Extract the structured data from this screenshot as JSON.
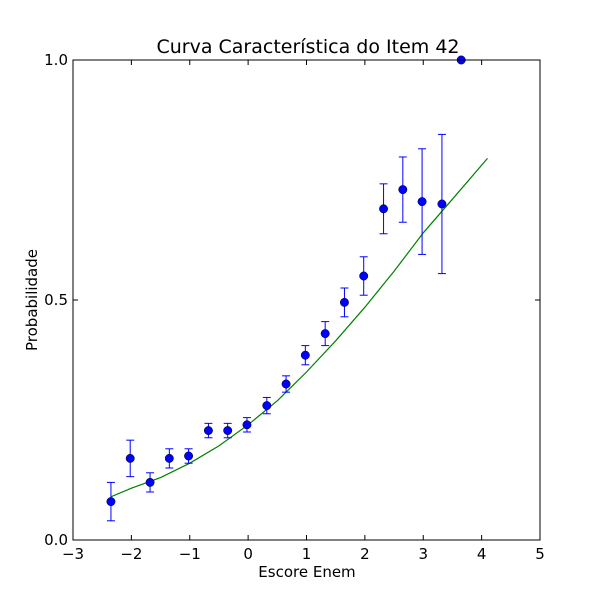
{
  "chart_data": {
    "type": "scatter",
    "title": "Curva Característica do Item 42",
    "xlabel": "Escore Enem",
    "ylabel": "Probabilidade",
    "xlim": [
      -3,
      5
    ],
    "ylim": [
      0,
      1
    ],
    "xticks": [
      -3,
      -2,
      -1,
      0,
      1,
      2,
      3,
      4,
      5
    ],
    "xtick_labels": [
      "−3",
      "−2",
      "−1",
      "0",
      "1",
      "2",
      "3",
      "4",
      "5"
    ],
    "yticks": [
      0,
      0.5,
      1
    ],
    "ytick_labels": [
      "0.0",
      "0.5",
      "1.0"
    ],
    "grid": false,
    "legend": "none",
    "points": {
      "color": "#0000ff",
      "x": [
        -2.35,
        -2.02,
        -1.68,
        -1.35,
        -1.02,
        -0.68,
        -0.35,
        -0.02,
        0.32,
        0.65,
        0.98,
        1.32,
        1.65,
        1.98,
        2.32,
        2.65,
        2.98,
        3.32,
        3.65
      ],
      "y": [
        0.08,
        0.17,
        0.12,
        0.17,
        0.175,
        0.228,
        0.228,
        0.24,
        0.28,
        0.325,
        0.385,
        0.43,
        0.495,
        0.55,
        0.69,
        0.73,
        0.705,
        0.7,
        1.0
      ],
      "yerr": [
        0.04,
        0.038,
        0.02,
        0.02,
        0.015,
        0.015,
        0.015,
        0.015,
        0.017,
        0.017,
        0.02,
        0.025,
        0.03,
        0.04,
        0.052,
        0.068,
        0.11,
        0.145,
        0
      ]
    },
    "curve": {
      "color": "#008000",
      "x": [
        -2.35,
        -2.0,
        -1.5,
        -1.0,
        -0.5,
        0.0,
        0.5,
        1.0,
        1.5,
        2.0,
        2.5,
        3.0,
        3.5,
        4.1
      ],
      "y": [
        0.09,
        0.108,
        0.13,
        0.16,
        0.196,
        0.24,
        0.29,
        0.35,
        0.415,
        0.485,
        0.56,
        0.64,
        0.71,
        0.795
      ]
    }
  }
}
